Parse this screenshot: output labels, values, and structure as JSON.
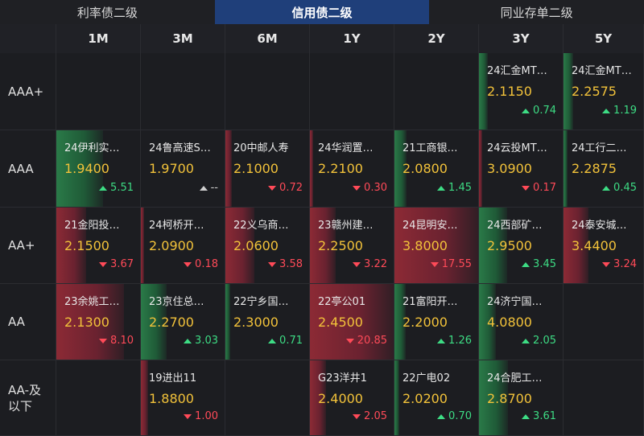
{
  "tabs": [
    {
      "label": "利率债二级",
      "active": false
    },
    {
      "label": "信用债二级",
      "active": true
    },
    {
      "label": "同业存单二级",
      "active": false
    }
  ],
  "columns": [
    "1M",
    "3M",
    "6M",
    "1Y",
    "2Y",
    "3Y",
    "5Y"
  ],
  "rows": [
    {
      "label": "AAA+",
      "cells": [
        null,
        null,
        null,
        null,
        null,
        {
          "name": "24汇金MT…",
          "yield": "2.1150",
          "change": "0.74",
          "direction": "up",
          "bar_fraction": 0.1
        },
        {
          "name": "24汇金MT…",
          "yield": "2.2575",
          "change": "1.19",
          "direction": "up",
          "bar_fraction": 0.12
        }
      ]
    },
    {
      "label": "AAA",
      "cells": [
        {
          "name": "24伊利实…",
          "yield": "1.9400",
          "change": "5.51",
          "direction": "up",
          "bar_fraction": 0.55
        },
        {
          "name": "24鲁高速S…",
          "yield": "1.9700",
          "change": "--",
          "direction": "flat",
          "bar_fraction": 0
        },
        {
          "name": "20中邮人寿",
          "yield": "2.1000",
          "change": "0.72",
          "direction": "down",
          "bar_fraction": 0.08
        },
        {
          "name": "24华润置…",
          "yield": "2.2100",
          "change": "0.30",
          "direction": "down",
          "bar_fraction": 0.04
        },
        {
          "name": "21工商银…",
          "yield": "2.0800",
          "change": "1.45",
          "direction": "up",
          "bar_fraction": 0.14
        },
        {
          "name": "24云投MT…",
          "yield": "3.0900",
          "change": "0.17",
          "direction": "down",
          "bar_fraction": 0.03
        },
        {
          "name": "24工行二…",
          "yield": "2.2875",
          "change": "0.45",
          "direction": "up",
          "bar_fraction": 0.05
        }
      ]
    },
    {
      "label": "AA+",
      "cells": [
        {
          "name": "21金阳投…",
          "yield": "2.1500",
          "change": "3.67",
          "direction": "down",
          "bar_fraction": 0.35
        },
        {
          "name": "24柯桥开…",
          "yield": "2.0900",
          "change": "0.18",
          "direction": "down",
          "bar_fraction": 0.03
        },
        {
          "name": "22义乌商…",
          "yield": "2.0600",
          "change": "3.58",
          "direction": "down",
          "bar_fraction": 0.34
        },
        {
          "name": "23赣州建…",
          "yield": "2.2500",
          "change": "3.22",
          "direction": "down",
          "bar_fraction": 0.3
        },
        {
          "name": "24昆明安…",
          "yield": "3.8000",
          "change": "17.55",
          "direction": "down",
          "bar_fraction": 1.0
        },
        {
          "name": "24西部矿…",
          "yield": "2.9500",
          "change": "3.45",
          "direction": "up",
          "bar_fraction": 0.33
        },
        {
          "name": "24泰安城…",
          "yield": "3.4400",
          "change": "3.24",
          "direction": "down",
          "bar_fraction": 0.31
        }
      ]
    },
    {
      "label": "AA",
      "cells": [
        {
          "name": "23余姚工…",
          "yield": "2.1300",
          "change": "8.10",
          "direction": "down",
          "bar_fraction": 0.8
        },
        {
          "name": "23京住总…",
          "yield": "2.2700",
          "change": "3.03",
          "direction": "up",
          "bar_fraction": 0.3
        },
        {
          "name": "22宁乡国…",
          "yield": "2.3000",
          "change": "0.71",
          "direction": "up",
          "bar_fraction": 0.06
        },
        {
          "name": "22亭公01",
          "yield": "2.4500",
          "change": "20.85",
          "direction": "down",
          "bar_fraction": 1.0
        },
        {
          "name": "21富阳开…",
          "yield": "2.2000",
          "change": "1.26",
          "direction": "up",
          "bar_fraction": 0.13
        },
        {
          "name": "24济宁国…",
          "yield": "4.0800",
          "change": "2.05",
          "direction": "up",
          "bar_fraction": 0.2
        },
        null
      ]
    },
    {
      "label": "AA-及以下",
      "cells": [
        null,
        {
          "name": "19进出11",
          "yield": "1.8800",
          "change": "1.00",
          "direction": "down",
          "bar_fraction": 0.09
        },
        null,
        {
          "name": "G23洋井1",
          "yield": "2.4000",
          "change": "2.05",
          "direction": "down",
          "bar_fraction": 0.19
        },
        {
          "name": "22广电02",
          "yield": "2.0200",
          "change": "0.70",
          "direction": "up",
          "bar_fraction": 0.06
        },
        {
          "name": "24合肥工…",
          "yield": "2.8700",
          "change": "3.61",
          "direction": "up",
          "bar_fraction": 0.34
        },
        null
      ]
    }
  ],
  "colors": {
    "yield": "#f2c23a",
    "up": "#3ddc84",
    "down": "#ff4a58",
    "active_tab": "#1f3f7a"
  }
}
